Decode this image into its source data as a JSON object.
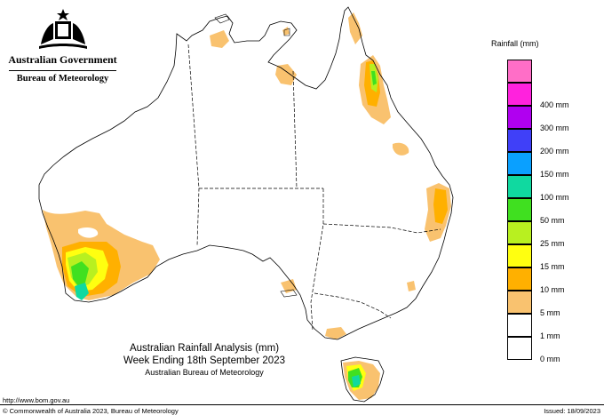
{
  "header": {
    "government": "Australian Government",
    "bureau": "Bureau of Meteorology"
  },
  "legend": {
    "title": "Rainfall (mm)",
    "items": [
      {
        "label": "",
        "color": "#ff6ec7"
      },
      {
        "label": "400 mm",
        "color": "#ff22dd"
      },
      {
        "label": "300 mm",
        "color": "#b000f0"
      },
      {
        "label": "200 mm",
        "color": "#4040f8"
      },
      {
        "label": "150 mm",
        "color": "#0aa0ff"
      },
      {
        "label": "100 mm",
        "color": "#10d9a0"
      },
      {
        "label": "50 mm",
        "color": "#40e020"
      },
      {
        "label": "25 mm",
        "color": "#b8f020"
      },
      {
        "label": "15 mm",
        "color": "#ffff10"
      },
      {
        "label": "10 mm",
        "color": "#ffb000"
      },
      {
        "label": "5 mm",
        "color": "#f9c26f"
      },
      {
        "label": "1 mm",
        "color": "#ffffff"
      },
      {
        "label": "0 mm",
        "color": "#ffffff"
      }
    ]
  },
  "caption": {
    "title": "Australian Rainfall Analysis (mm)",
    "period": "Week Ending 18th September 2023",
    "source": "Australian Bureau of Meteorology"
  },
  "footer": {
    "url": "http://www.bom.gov.au",
    "copyright": "© Commonwealth of Australia 2023, Bureau of Meteorology",
    "issued": "Issued: 18/09/2023"
  },
  "regions": [
    "Western Australia",
    "Northern Territory",
    "South Australia",
    "Queensland",
    "New South Wales",
    "Victoria",
    "Tasmania"
  ]
}
